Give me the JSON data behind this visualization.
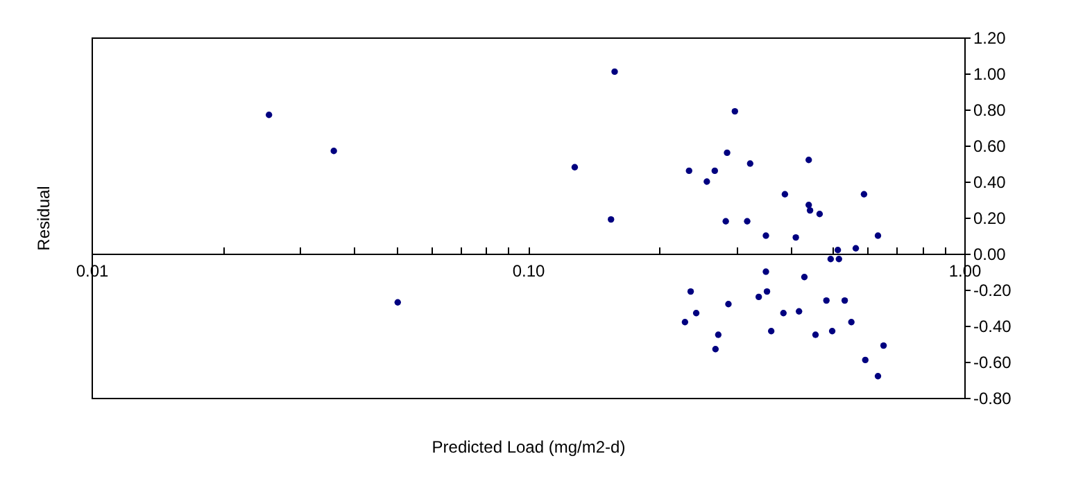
{
  "chart_data": {
    "type": "scatter",
    "xlabel": "Predicted Load (mg/m2-d)",
    "ylabel": "Residual",
    "log": "x",
    "grid": false,
    "legend": false,
    "marker": "circle",
    "xlim": [
      0.01,
      1.0
    ],
    "ylim": [
      -0.8,
      1.2
    ],
    "xticks": [
      {
        "value": 0.01,
        "label": "0.01"
      },
      {
        "value": 0.02,
        "label": null
      },
      {
        "value": 0.03,
        "label": null
      },
      {
        "value": 0.04,
        "label": null
      },
      {
        "value": 0.05,
        "label": null
      },
      {
        "value": 0.06,
        "label": null
      },
      {
        "value": 0.07,
        "label": null
      },
      {
        "value": 0.08,
        "label": null
      },
      {
        "value": 0.09,
        "label": null
      },
      {
        "value": 0.1,
        "label": "0.10"
      },
      {
        "value": 0.2,
        "label": null
      },
      {
        "value": 0.3,
        "label": null
      },
      {
        "value": 0.4,
        "label": null
      },
      {
        "value": 0.5,
        "label": null
      },
      {
        "value": 0.6,
        "label": null
      },
      {
        "value": 0.7,
        "label": null
      },
      {
        "value": 0.8,
        "label": null
      },
      {
        "value": 0.9,
        "label": null
      },
      {
        "value": 1.0,
        "label": "1.00"
      }
    ],
    "yticks": [
      {
        "value": -0.8,
        "label": "-0.80"
      },
      {
        "value": -0.6,
        "label": "-0.60"
      },
      {
        "value": -0.4,
        "label": "-0.40"
      },
      {
        "value": -0.2,
        "label": "-0.20"
      },
      {
        "value": 0,
        "label": "0.00"
      },
      {
        "value": 0.2,
        "label": "0.20"
      },
      {
        "value": 0.4,
        "label": "0.40"
      },
      {
        "value": 0.6,
        "label": "0.60"
      },
      {
        "value": 0.8,
        "label": "0.80"
      },
      {
        "value": 1.0,
        "label": "1.00"
      },
      {
        "value": 1.2,
        "label": "1.20"
      }
    ],
    "series": [
      {
        "color": "#000080",
        "x": [
          0.0255,
          0.0359,
          0.0503,
          0.128,
          0.158,
          0.155,
          0.234,
          0.268,
          0.257,
          0.286,
          0.284,
          0.298,
          0.323,
          0.318,
          0.351,
          0.388,
          0.411,
          0.44,
          0.44,
          0.443,
          0.466,
          0.589,
          0.634,
          0.513,
          0.564,
          0.494,
          0.516,
          0.351,
          0.43,
          0.236,
          0.353,
          0.338,
          0.229,
          0.243,
          0.288,
          0.273,
          0.269,
          0.361,
          0.385,
          0.418,
          0.456,
          0.483,
          0.498,
          0.532,
          0.551,
          0.593,
          0.634,
          0.653
        ],
        "values": [
          0.77,
          0.57,
          -0.27,
          0.48,
          1.01,
          0.19,
          0.46,
          0.46,
          0.4,
          0.56,
          0.18,
          0.79,
          0.5,
          0.18,
          0.1,
          0.33,
          0.09,
          0.52,
          0.27,
          0.24,
          0.22,
          0.33,
          0.1,
          0.02,
          0.03,
          -0.03,
          -0.03,
          -0.1,
          -0.13,
          -0.21,
          -0.21,
          -0.24,
          -0.38,
          -0.33,
          -0.28,
          -0.45,
          -0.53,
          -0.43,
          -0.33,
          -0.32,
          -0.45,
          -0.26,
          -0.43,
          -0.26,
          -0.38,
          -0.59,
          -0.68,
          -0.51
        ]
      }
    ]
  }
}
